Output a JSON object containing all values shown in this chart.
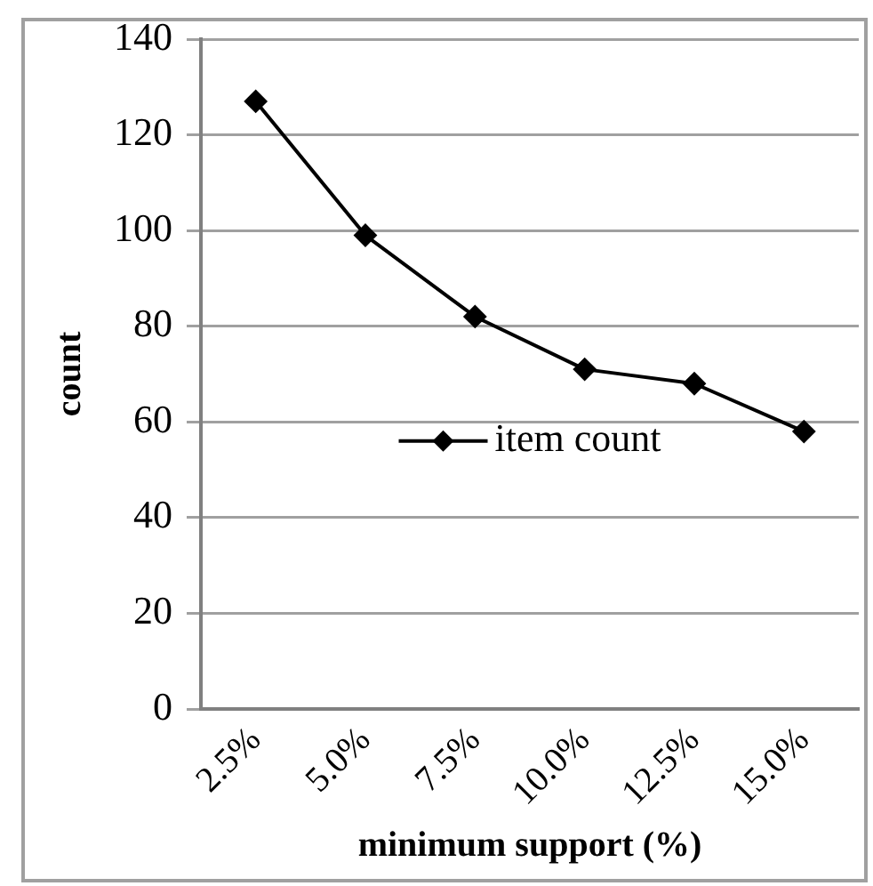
{
  "chart_data": {
    "type": "line",
    "xlabel": "minimum support (%)",
    "ylabel": "count",
    "categories": [
      "2.5%",
      "5.0%",
      "7.5%",
      "10.0%",
      "12.5%",
      "15.0%"
    ],
    "series": [
      {
        "name": "item count",
        "color": "#000000",
        "values": [
          127,
          99,
          82,
          71,
          68,
          58
        ]
      }
    ],
    "ylim": [
      0,
      140
    ],
    "yticks": [
      0,
      20,
      40,
      60,
      80,
      100,
      120,
      140
    ],
    "grid": "y",
    "legend": "center",
    "marker": "diamond",
    "line_style": "solid"
  }
}
